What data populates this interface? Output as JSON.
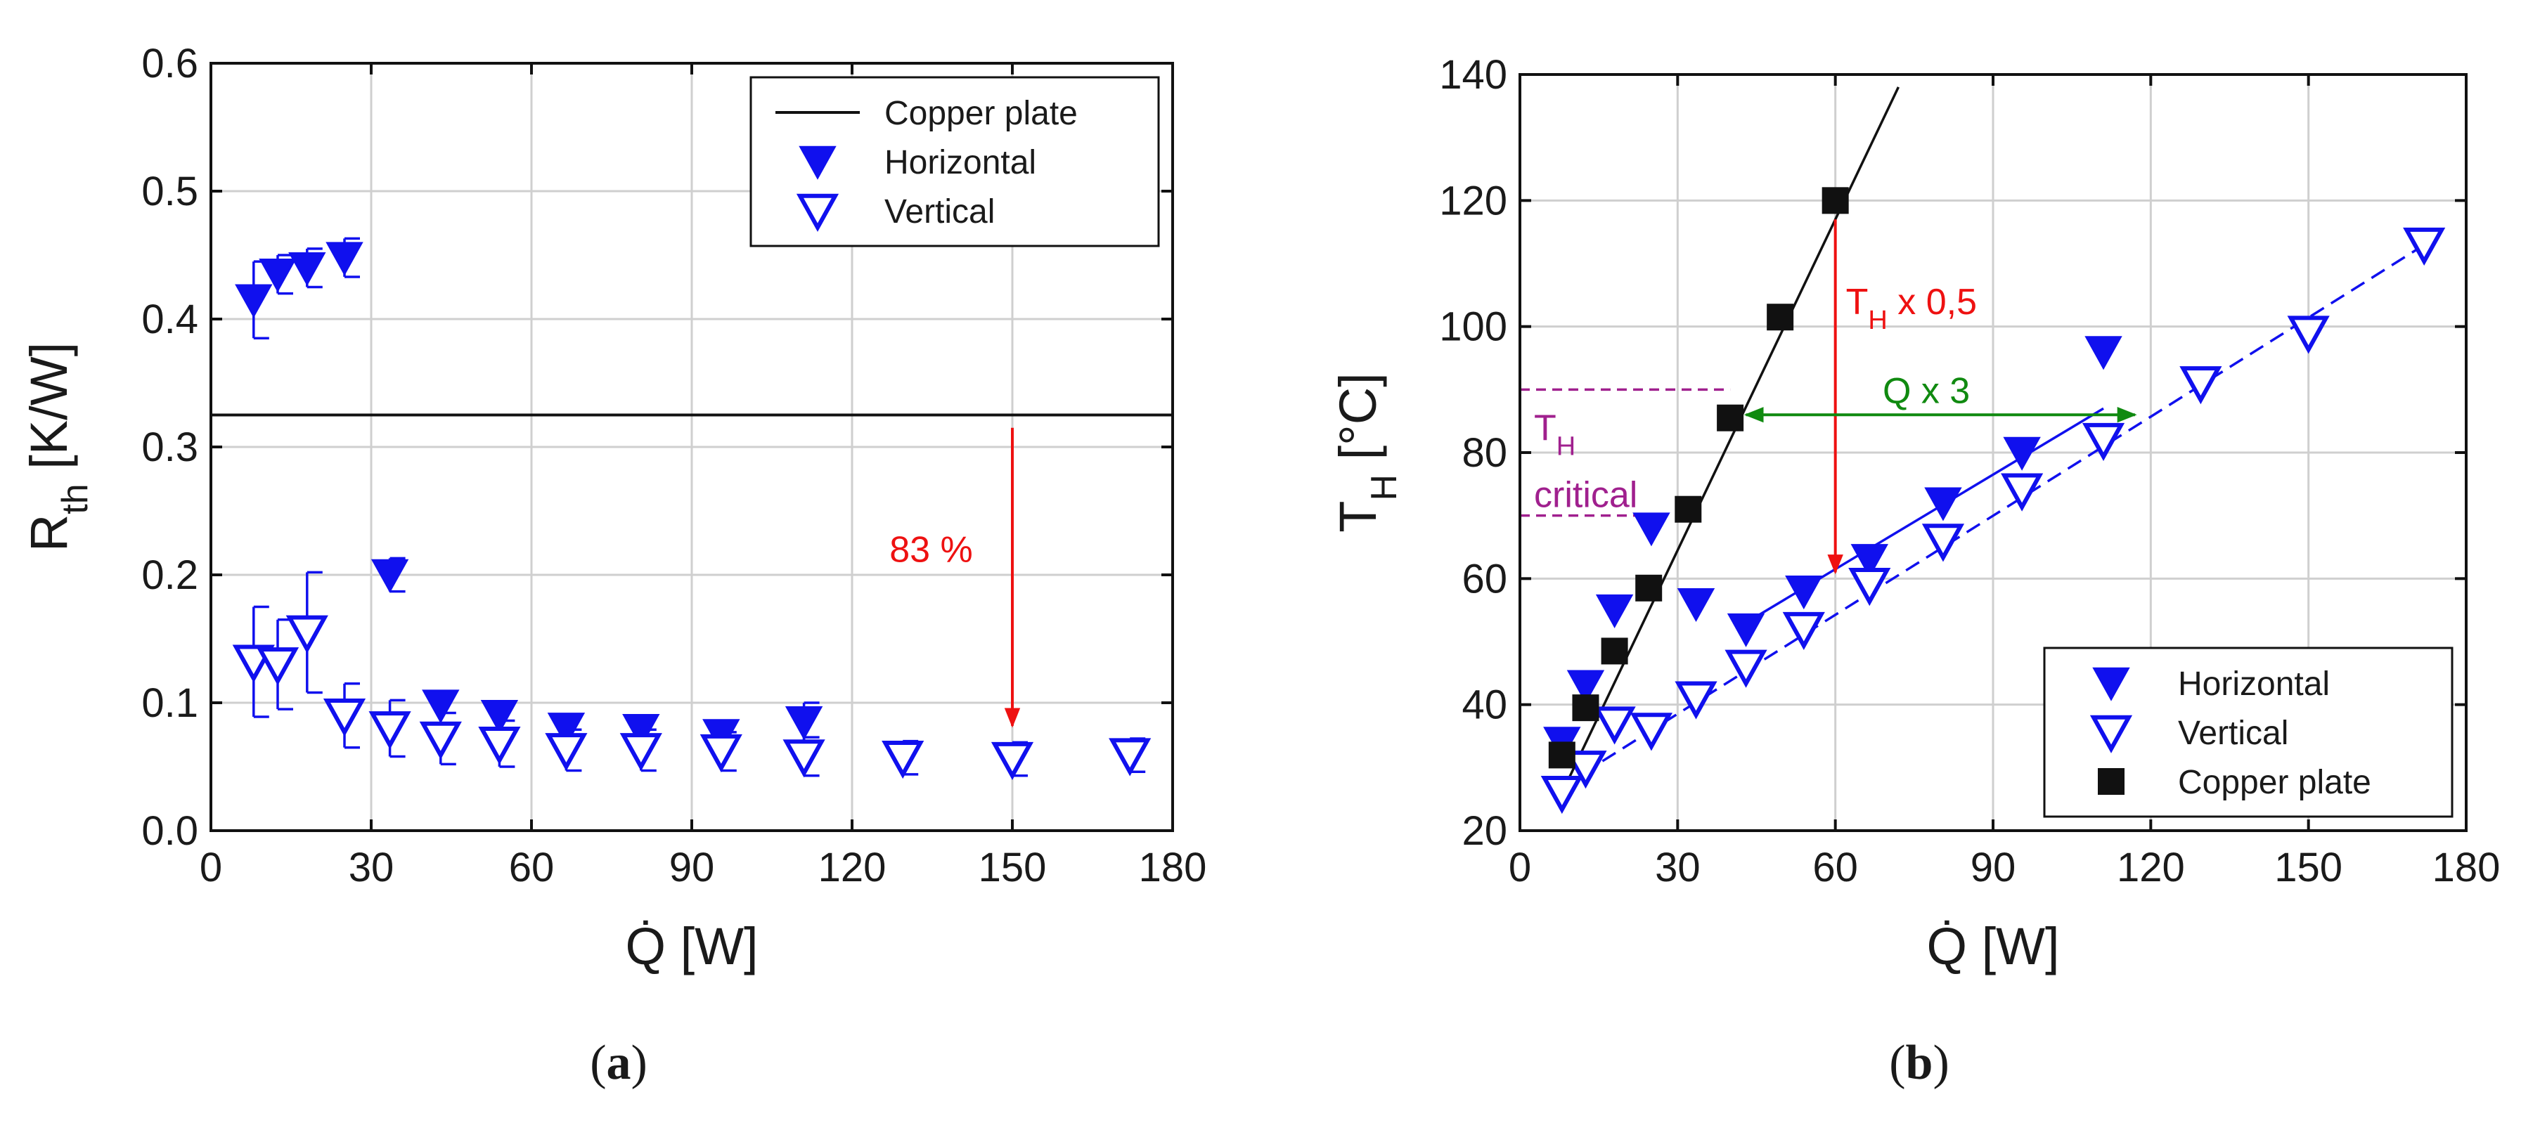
{
  "colors": {
    "blue": "#1010ee",
    "black": "#111111",
    "red": "#ee1111",
    "green": "#108a10",
    "purple": "#a0208e",
    "grid": "#cfcfcf"
  },
  "chart_data": [
    {
      "type": "scatter",
      "caption_letter": "a",
      "xlabel": "Q̇ [W]",
      "ylabel_main": "R",
      "ylabel_sub": "th",
      "ylabel_rest": " [K/W]",
      "xlim": [
        0,
        180
      ],
      "ylim": [
        0,
        0.6
      ],
      "xticks": [
        0,
        30,
        60,
        90,
        120,
        150,
        180
      ],
      "yticks": [
        0.0,
        0.1,
        0.2,
        0.3,
        0.4,
        0.5,
        0.6
      ],
      "xtick_labels": [
        "0",
        "30",
        "60",
        "90",
        "120",
        "150",
        "180"
      ],
      "ytick_labels": [
        "0.0",
        "0.1",
        "0.2",
        "0.3",
        "0.4",
        "0.5",
        "0.6"
      ],
      "grid": true,
      "legend": {
        "position": "top-right",
        "entries": [
          "Copper plate",
          "Horizontal",
          "Vertical"
        ]
      },
      "hline": {
        "name": "Copper plate",
        "y": 0.325
      },
      "series": [
        {
          "name": "Horizontal",
          "marker": "filled-down-triangle",
          "x": [
            8,
            12.5,
            18,
            25,
            33.5,
            43,
            54,
            66.5,
            80.5,
            95.5,
            111
          ],
          "y": [
            0.415,
            0.435,
            0.44,
            0.448,
            0.2,
            0.098,
            0.09,
            0.08,
            0.079,
            0.075,
            0.085
          ],
          "err": [
            0.03,
            0.015,
            0.015,
            0.015,
            0.013,
            0,
            0,
            0,
            0,
            0,
            0.015
          ]
        },
        {
          "name": "Vertical",
          "marker": "open-down-triangle",
          "x": [
            8,
            12.5,
            18,
            25,
            33.5,
            43,
            54,
            66.5,
            80.5,
            95.5,
            111,
            129.5,
            150,
            172
          ],
          "y": [
            0.132,
            0.13,
            0.155,
            0.09,
            0.08,
            0.072,
            0.068,
            0.063,
            0.063,
            0.062,
            0.058,
            0.057,
            0.056,
            0.059
          ],
          "err": [
            0.043,
            0.035,
            0.047,
            0.025,
            0.022,
            0.02,
            0.018,
            0.016,
            0.016,
            0.015,
            0.015,
            0.013,
            0.013,
            0.013
          ]
        }
      ],
      "annotations": [
        {
          "text": "83 %",
          "arrow_x": 150,
          "arrow_from_y": 0.315,
          "arrow_to_y": 0.082,
          "label_x": 127,
          "label_y": 0.22,
          "color": "red"
        }
      ]
    },
    {
      "type": "scatter",
      "caption_letter": "b",
      "xlabel": "Q̇ [W]",
      "ylabel_main": "T",
      "ylabel_sub": "H",
      "ylabel_rest": " [°C]",
      "xlim": [
        0,
        180
      ],
      "ylim": [
        20,
        140
      ],
      "xticks": [
        0,
        30,
        60,
        90,
        120,
        150,
        180
      ],
      "yticks": [
        20,
        40,
        60,
        80,
        100,
        120,
        140
      ],
      "xtick_labels": [
        "0",
        "30",
        "60",
        "90",
        "120",
        "150",
        "180"
      ],
      "ytick_labels": [
        "20",
        "40",
        "60",
        "80",
        "100",
        "120",
        "140"
      ],
      "grid": true,
      "legend": {
        "position": "bottom-right",
        "entries": [
          "Horizontal",
          "Vertical",
          "Copper plate"
        ]
      },
      "series": [
        {
          "name": "Horizontal",
          "marker": "filled-down-triangle",
          "x": [
            8,
            12.5,
            18,
            25,
            33.5,
            43,
            54,
            66.5,
            80.5,
            95.5,
            111
          ],
          "y": [
            34,
            43,
            55,
            68,
            56,
            52,
            58,
            63,
            72,
            80,
            96
          ]
        },
        {
          "name": "Vertical",
          "marker": "open-down-triangle",
          "x": [
            8,
            12.5,
            18,
            25,
            33.5,
            43,
            54,
            66.5,
            80.5,
            95.5,
            111,
            129.5,
            150,
            172
          ],
          "y": [
            26,
            30,
            37,
            36,
            41,
            46,
            52,
            59,
            66,
            74,
            82,
            91,
            99,
            113
          ]
        },
        {
          "name": "Copper plate",
          "marker": "filled-square",
          "x": [
            8,
            12.5,
            18,
            24.5,
            32,
            40,
            49.5,
            60
          ],
          "y": [
            32,
            39.5,
            48.5,
            58.5,
            71,
            85.5,
            101.5,
            120
          ]
        }
      ],
      "fit_lines": [
        {
          "series": "Copper plate",
          "style": "solid",
          "color": "black",
          "from": [
            8,
            26
          ],
          "to": [
            72,
            138
          ]
        },
        {
          "series": "Horizontal",
          "style": "solid",
          "color": "blue",
          "from": [
            43,
            53
          ],
          "to": [
            111,
            87
          ]
        },
        {
          "series": "Vertical",
          "style": "dashed",
          "color": "blue",
          "from": [
            8,
            27
          ],
          "to": [
            174,
            114
          ]
        }
      ],
      "annotations": [
        {
          "text_main": "T",
          "text_sub": "H",
          "text_rest": " x 0,5",
          "color": "red",
          "arrow_x": 60,
          "arrow_from_y": 117,
          "arrow_to_y": 61,
          "label_x": 62,
          "label_y": 104
        },
        {
          "text": "Q x 3",
          "color": "green",
          "arrow_y": 86,
          "arrow_from_x": 43,
          "arrow_to_x": 117,
          "label_x": 69,
          "label_y": 89
        },
        {
          "text_main": "T",
          "text_sub": "H",
          "line2": "critical",
          "color": "purple",
          "level_high": 90,
          "level_low": 70,
          "line_to_x": 40,
          "line_low_to_x": 28
        }
      ]
    }
  ]
}
